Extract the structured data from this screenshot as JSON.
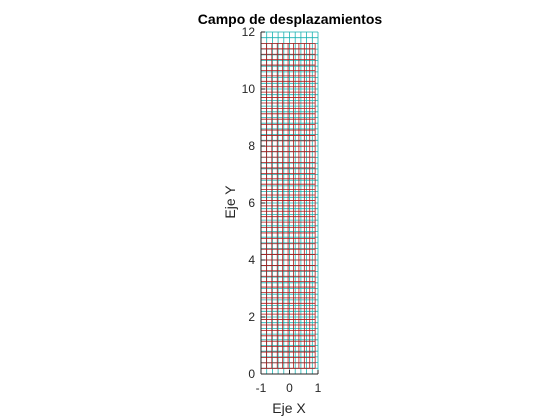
{
  "chart_data": {
    "type": "mesh",
    "title": "Campo de desplazamientos",
    "xlabel": "Eje X",
    "ylabel": "Eje Y",
    "xlim": [
      -1,
      1
    ],
    "ylim": [
      0,
      12
    ],
    "xticks": [
      -1,
      0,
      1
    ],
    "yticks": [
      0,
      2,
      4,
      6,
      8,
      10,
      12
    ],
    "grid": {
      "nx": 10,
      "ny": 60
    },
    "series": [
      {
        "color": "#19b2b2",
        "x_range": [
          -1,
          1
        ],
        "y_range": [
          0,
          12
        ]
      },
      {
        "color": "#b21919",
        "x_range": [
          -1,
          0.9
        ],
        "y_range": [
          0.2,
          11.6
        ]
      }
    ]
  }
}
